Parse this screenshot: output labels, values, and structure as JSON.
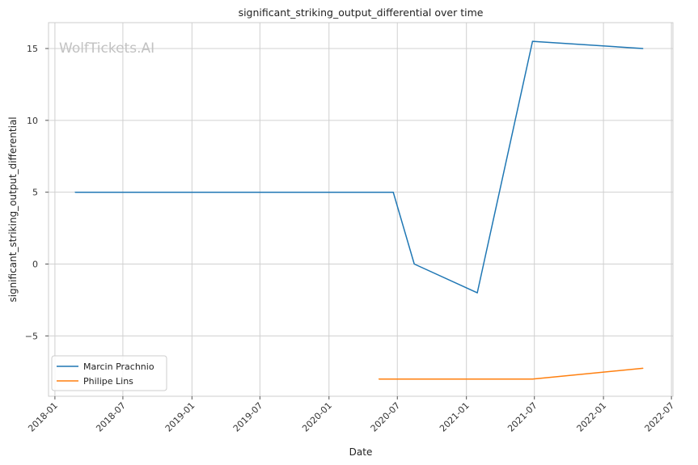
{
  "chart_data": {
    "type": "line",
    "title": "significant_striking_output_differential over time",
    "xlabel": "Date",
    "ylabel": "significant_striking_output_differential",
    "watermark": "WolfTickets.AI",
    "xlim": [
      "2017-12-15",
      "2022-07-05"
    ],
    "ylim": [
      -9.2,
      16.8
    ],
    "x_ticks": [
      "2018-01",
      "2018-07",
      "2019-01",
      "2019-07",
      "2020-01",
      "2020-07",
      "2021-01",
      "2021-07",
      "2022-01",
      "2022-07"
    ],
    "y_ticks": [
      -5,
      0,
      5,
      10,
      15
    ],
    "y_tick_labels": [
      "−5",
      "0",
      "5",
      "10",
      "15"
    ],
    "grid": true,
    "legend_position": "bottom-left",
    "series": [
      {
        "name": "Marcin Prachnio",
        "color": "#1f77b4",
        "x": [
          "2018-02-24",
          "2020-06-20",
          "2020-08-15",
          "2021-01-30",
          "2021-06-26",
          "2022-04-16"
        ],
        "y": [
          5,
          5,
          0,
          -2,
          15.5,
          15
        ]
      },
      {
        "name": "Philipe Lins",
        "color": "#ff7f0e",
        "x": [
          "2020-05-13",
          "2021-06-26",
          "2022-04-16"
        ],
        "y": [
          -8,
          -8,
          -7.25
        ]
      }
    ]
  }
}
